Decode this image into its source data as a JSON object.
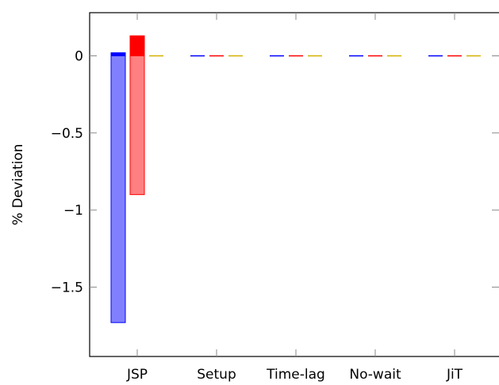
{
  "chart_data": {
    "type": "bar",
    "title": "",
    "xlabel": "",
    "ylabel": "% Deviation",
    "ylim": [
      -1.95,
      0.28
    ],
    "yticks": [
      {
        "value": 0,
        "label": "0"
      },
      {
        "value": -0.5,
        "label": "−0.5"
      },
      {
        "value": -1,
        "label": "−1"
      },
      {
        "value": -1.5,
        "label": "−1.5"
      }
    ],
    "categories": [
      "JSP",
      "Setup",
      "Time-lag",
      "No-wait",
      "JiT"
    ],
    "grid": false,
    "bar_series": [
      {
        "color": "#0000ff",
        "light_color": "#8080ff",
        "values": [
          {
            "low": -1.73,
            "high": 0
          },
          {
            "low": 0,
            "high": 0
          },
          {
            "low": 0,
            "high": 0
          },
          {
            "low": 0,
            "high": 0
          },
          {
            "low": 0,
            "high": 0
          }
        ],
        "upper_values": [
          0.02,
          0,
          0,
          0,
          0
        ]
      },
      {
        "color": "#ff0000",
        "light_color": "#ff8080",
        "values": [
          {
            "low": -0.9,
            "high": 0
          },
          {
            "low": 0,
            "high": 0
          },
          {
            "low": 0,
            "high": 0
          },
          {
            "low": 0,
            "high": 0
          },
          {
            "low": 0,
            "high": 0
          }
        ],
        "upper_values": [
          0.13,
          0,
          0,
          0,
          0
        ]
      },
      {
        "color": "#d4b000",
        "light_color": "#e8d070",
        "values": [
          {
            "low": 0,
            "high": 0
          },
          {
            "low": 0,
            "high": 0
          },
          {
            "low": 0,
            "high": 0
          },
          {
            "low": 0,
            "high": 0
          },
          {
            "low": 0,
            "high": 0
          }
        ],
        "upper_values": [
          0,
          0,
          0,
          0,
          0
        ]
      }
    ]
  }
}
